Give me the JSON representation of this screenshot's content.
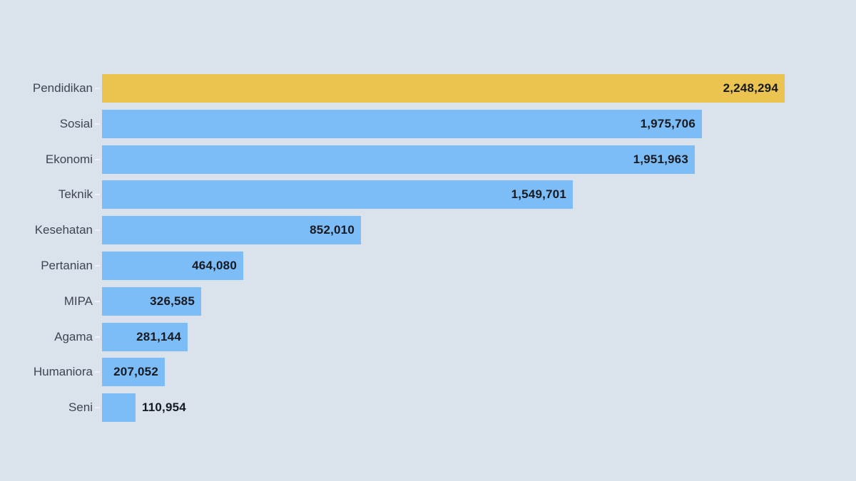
{
  "chart_data": {
    "type": "bar",
    "orientation": "horizontal",
    "title": "",
    "xlabel": "",
    "ylabel": "",
    "grid": false,
    "legend": false,
    "sort": "descending",
    "categories": [
      "Pendidikan",
      "Sosial",
      "Ekonomi",
      "Teknik",
      "Kesehatan",
      "Pertanian",
      "MIPA",
      "Agama",
      "Humaniora",
      "Seni"
    ],
    "values": [
      2248294,
      1975706,
      1951963,
      1549701,
      852010,
      464080,
      326585,
      281144,
      207052,
      110954
    ],
    "value_labels": [
      "2,248,294",
      "1,975,706",
      "1,951,963",
      "1,549,701",
      "852,010",
      "464,080",
      "326,585",
      "281,144",
      "207,052",
      "110,954"
    ],
    "xlim": [
      0,
      2248294
    ],
    "highlight_category": "Pendidikan",
    "colors": {
      "highlight_bar": "#ebc351",
      "default_bar": "#7dbdf7",
      "background": "#dae2ec",
      "category_label": "#3e4555",
      "value_label": "#171a21"
    }
  }
}
